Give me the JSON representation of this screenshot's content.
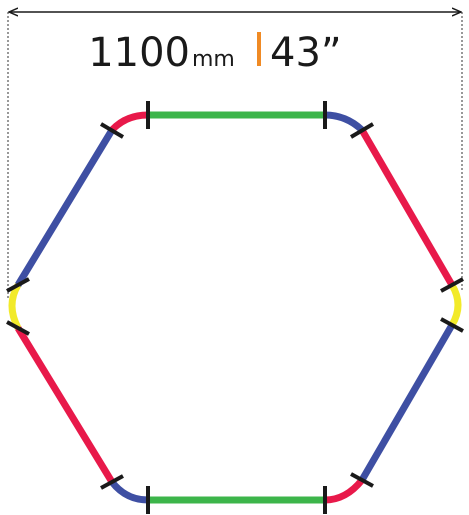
{
  "dimension": {
    "metric_value": "1100",
    "metric_unit": "mm",
    "imperial": "43”"
  }
}
